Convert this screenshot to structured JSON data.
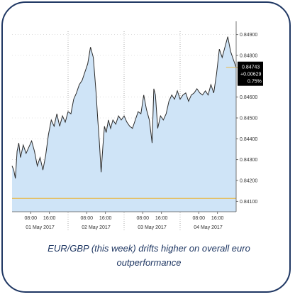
{
  "caption": {
    "line1": "EUR/GBP (this week) drifts higher on overall euro",
    "line2": "outperformance"
  },
  "chart_data": {
    "type": "area",
    "title": "",
    "xlabel": "",
    "ylabel": "",
    "ylim": [
      0.8405,
      0.8495
    ],
    "xlim": [
      0,
      4
    ],
    "grid": true,
    "y_ticks": [
      {
        "value": 0.849,
        "label": "0.84900"
      },
      {
        "value": 0.848,
        "label": "0.84800"
      },
      {
        "value": 0.846,
        "label": "0.84600"
      },
      {
        "value": 0.845,
        "label": "0.84500"
      },
      {
        "value": 0.844,
        "label": "0.84400"
      },
      {
        "value": 0.843,
        "label": "0.84300"
      },
      {
        "value": 0.842,
        "label": "0.84200"
      },
      {
        "value": 0.841,
        "label": "0.84100"
      }
    ],
    "x_ticks": [
      {
        "value": 0.333,
        "label": "08:00"
      },
      {
        "value": 0.667,
        "label": "16:00"
      },
      {
        "value": 1.333,
        "label": "08:00"
      },
      {
        "value": 1.667,
        "label": "16:00"
      },
      {
        "value": 2.333,
        "label": "08:00"
      },
      {
        "value": 2.667,
        "label": "16:00"
      },
      {
        "value": 3.333,
        "label": "08:00"
      },
      {
        "value": 3.667,
        "label": "16:00"
      }
    ],
    "day_dividers": [
      1,
      2,
      3
    ],
    "day_labels": [
      {
        "value": 0.5,
        "label": "01 May 2017"
      },
      {
        "value": 1.5,
        "label": "02 May 2017"
      },
      {
        "value": 2.5,
        "label": "03 May 2017"
      },
      {
        "value": 3.5,
        "label": "04 May 2017"
      }
    ],
    "current_price": {
      "value": 0.84743,
      "label": "0.84743"
    },
    "change_label": "+0.00629",
    "change_pct_label": "0.75%",
    "reference_level": 0.84114,
    "colors": {
      "area_fill": "#cfe4f7",
      "line": "#2b2b2b",
      "reference_line": "#e8b84a",
      "price_box": "#000000",
      "frame": "#1f3763"
    },
    "series": [
      {
        "x": [
          0.0,
          0.03,
          0.06,
          0.09,
          0.12,
          0.15,
          0.2,
          0.25,
          0.3,
          0.35,
          0.4,
          0.45,
          0.5,
          0.55,
          0.6,
          0.65,
          0.7,
          0.75,
          0.8,
          0.85,
          0.9,
          0.95,
          1.0,
          1.05,
          1.1,
          1.15,
          1.2,
          1.25,
          1.3,
          1.35,
          1.4,
          1.45,
          1.5,
          1.53,
          1.56,
          1.59,
          1.62,
          1.65,
          1.68,
          1.72,
          1.76,
          1.8,
          1.85,
          1.9,
          1.95,
          2.0,
          2.05,
          2.1,
          2.15,
          2.2,
          2.25,
          2.3,
          2.35,
          2.4,
          2.45,
          2.5,
          2.53,
          2.56,
          2.6,
          2.65,
          2.7,
          2.75,
          2.8,
          2.85,
          2.9,
          2.95,
          3.0,
          3.05,
          3.1,
          3.15,
          3.2,
          3.25,
          3.3,
          3.35,
          3.4,
          3.45,
          3.5,
          3.55,
          3.6,
          3.65,
          3.7,
          3.75,
          3.8,
          3.85,
          3.9,
          3.95,
          4.0
        ],
        "values": [
          0.8427,
          0.8425,
          0.8421,
          0.8434,
          0.8438,
          0.8431,
          0.8437,
          0.8433,
          0.8436,
          0.8439,
          0.8434,
          0.8427,
          0.8431,
          0.8425,
          0.8432,
          0.8442,
          0.8449,
          0.8446,
          0.8452,
          0.8446,
          0.8451,
          0.8448,
          0.8453,
          0.8452,
          0.8459,
          0.8462,
          0.8466,
          0.8468,
          0.8472,
          0.8476,
          0.8484,
          0.8479,
          0.8462,
          0.8449,
          0.8438,
          0.8424,
          0.8436,
          0.8446,
          0.8443,
          0.8449,
          0.8445,
          0.8449,
          0.8447,
          0.8451,
          0.8449,
          0.8451,
          0.8448,
          0.8446,
          0.8445,
          0.8449,
          0.8453,
          0.8452,
          0.8461,
          0.8454,
          0.8449,
          0.8438,
          0.8464,
          0.8461,
          0.8445,
          0.8451,
          0.8449,
          0.8452,
          0.8458,
          0.8461,
          0.8459,
          0.8463,
          0.8459,
          0.8461,
          0.8462,
          0.8458,
          0.8461,
          0.8462,
          0.8464,
          0.8462,
          0.8461,
          0.8463,
          0.8461,
          0.8466,
          0.8462,
          0.8471,
          0.8483,
          0.8479,
          0.8484,
          0.8489,
          0.8482,
          0.8478,
          0.84743
        ]
      }
    ]
  }
}
